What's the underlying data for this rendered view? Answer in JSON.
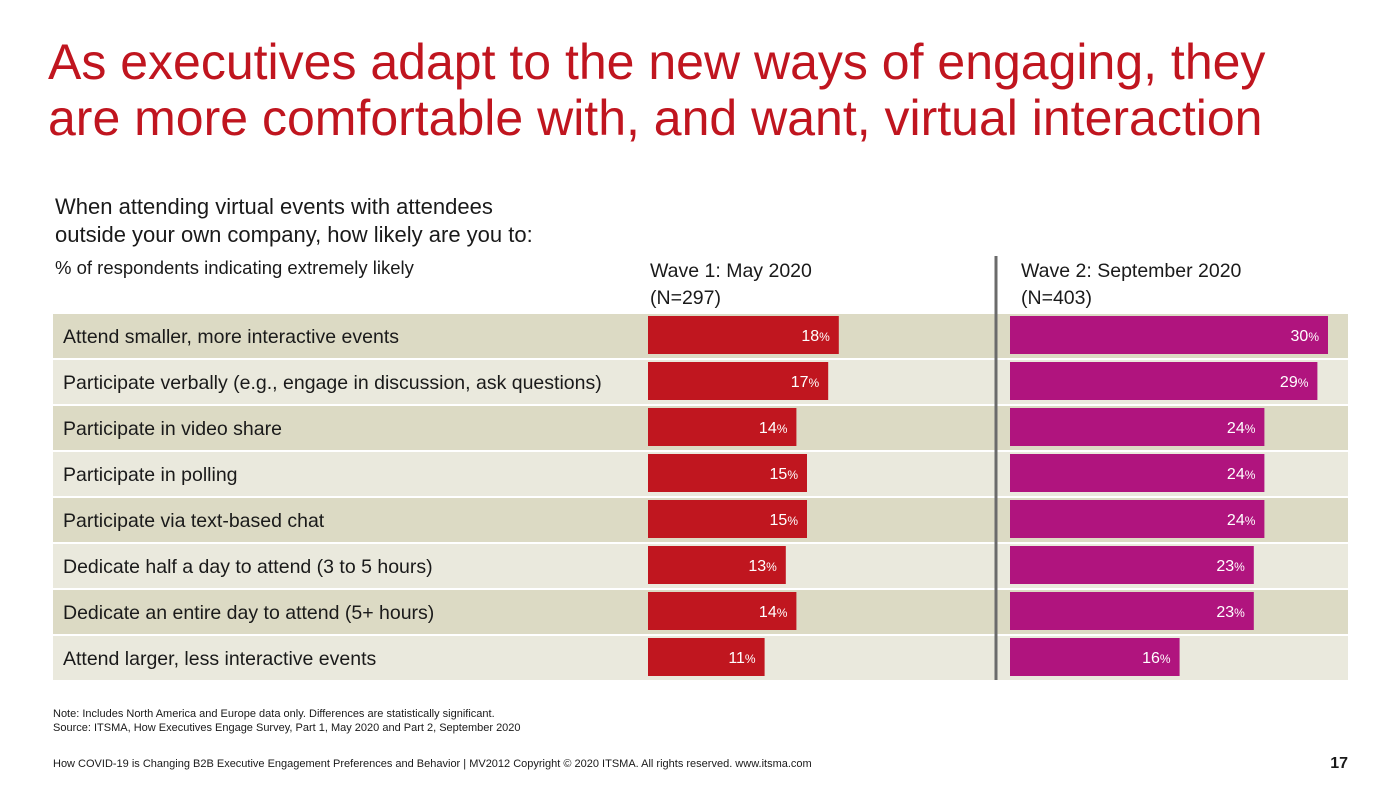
{
  "title": {
    "line1": "As executives adapt to the new ways of engaging, they",
    "line2": "are more comfortable with, and want, virtual interaction"
  },
  "question": {
    "line1": "When attending virtual events with attendees",
    "line2": "outside your own company, how likely are you to:"
  },
  "subtitle": "% of respondents indicating extremely likely",
  "colors": {
    "wave1": "#c0161f",
    "wave2": "#b0147e",
    "row_dark": "#dcdac4",
    "row_light": "#eae9dd",
    "divider": "#6b6b6b",
    "title": "#c0151f"
  },
  "chart_data": {
    "type": "bar",
    "orientation": "horizontal",
    "categories": [
      "Attend smaller, more interactive events",
      "Participate verbally (e.g., engage in discussion, ask questions)",
      "Participate in video share",
      "Participate in polling",
      "Participate via text-based chat",
      "Dedicate half a day to attend (3 to 5 hours)",
      "Dedicate an entire day to attend (5+ hours)",
      "Attend larger, less interactive events"
    ],
    "series": [
      {
        "name_line1": "Wave 1: May 2020",
        "name_line2": "(N=297)",
        "values": [
          18,
          17,
          14,
          15,
          15,
          13,
          14,
          11
        ]
      },
      {
        "name_line1": "Wave 2: September 2020",
        "name_line2": "(N=403)",
        "values": [
          30,
          29,
          24,
          24,
          24,
          23,
          23,
          16
        ]
      }
    ],
    "value_suffix": "%",
    "xlim": [
      0,
      30
    ]
  },
  "note": {
    "line1": "Note: Includes North America and Europe data only. Differences are statistically significant.",
    "line2": "Source: ITSMA, How Executives Engage Survey, Part 1, May 2020 and Part 2, September 2020"
  },
  "footer": "How COVID-19 is Changing B2B Executive Engagement Preferences and Behavior | MV2012 Copyright © 2020 ITSMA. All rights reserved.  www.itsma.com",
  "page_number": "17"
}
